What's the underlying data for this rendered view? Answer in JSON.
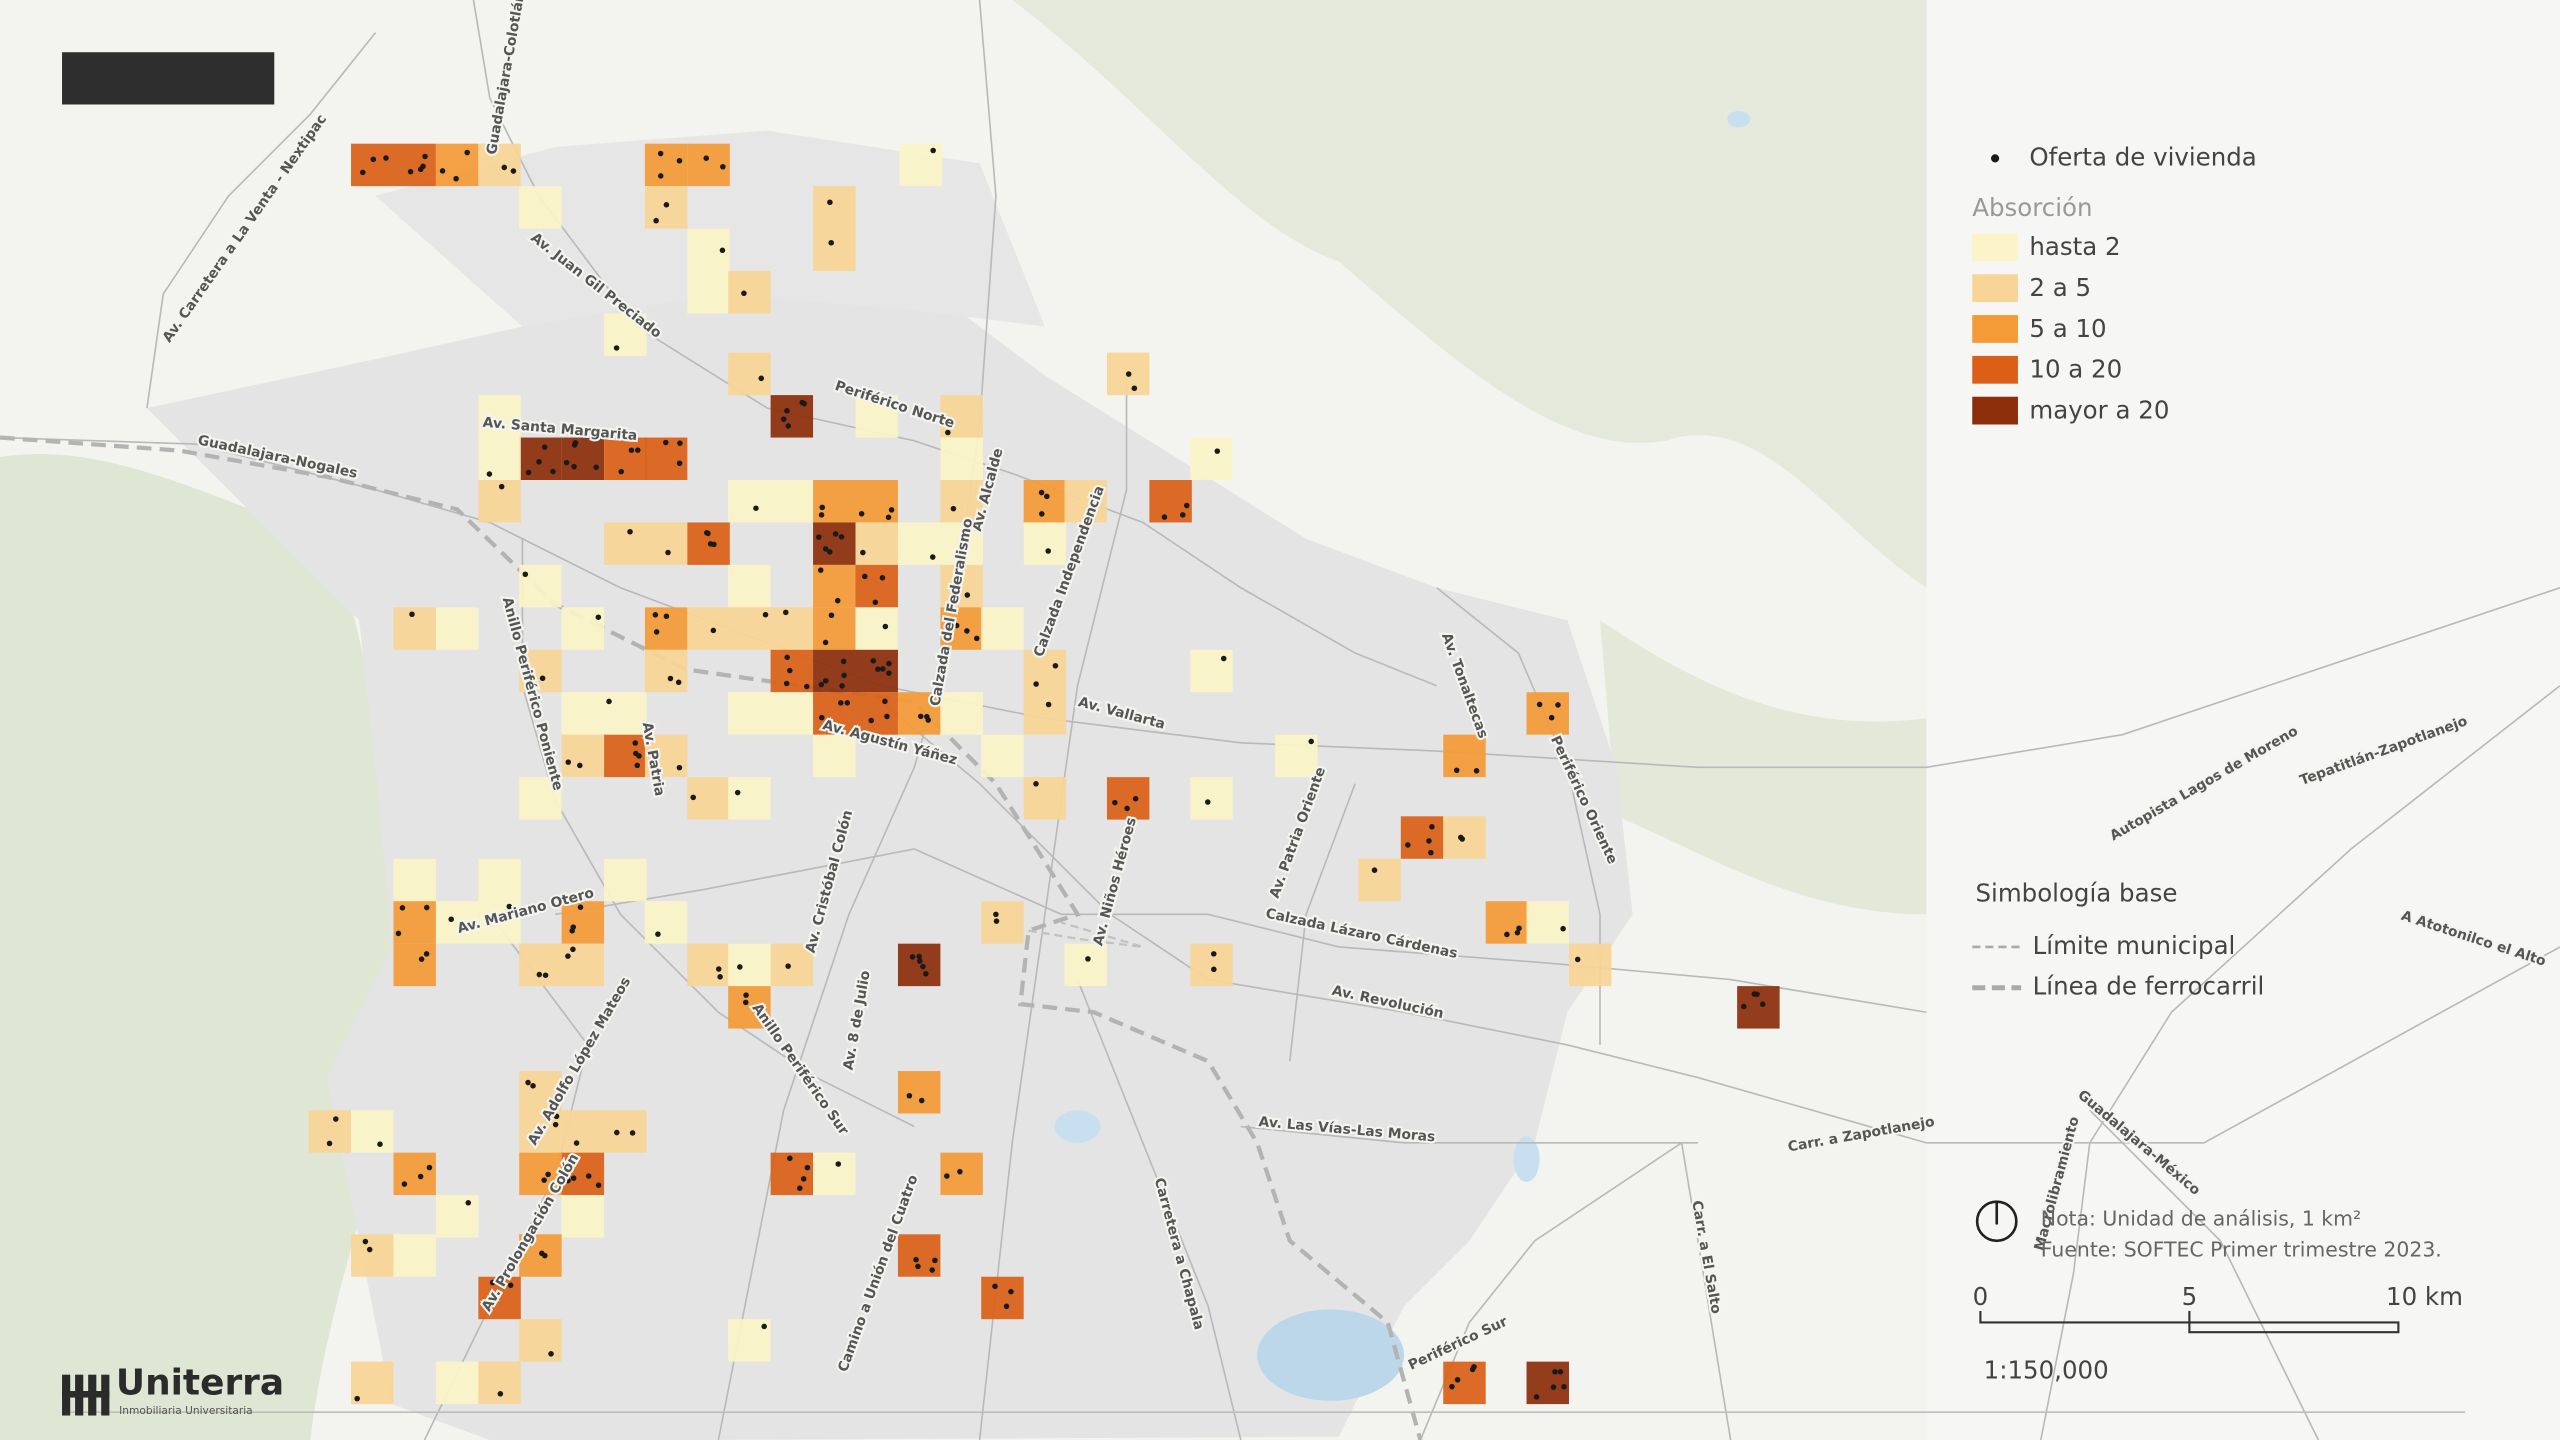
{
  "logo": {
    "name": "Uniterra",
    "tagline": "Inmobiliaria Universitaria"
  },
  "legend": {
    "points": "Oferta de vivienda",
    "title": "Absorción",
    "classes": [
      {
        "label": "hasta 2",
        "color": "#fbf4c8"
      },
      {
        "label": "2 a 5",
        "color": "#f8d596"
      },
      {
        "label": "5 a 10",
        "color": "#f49a36"
      },
      {
        "label": "10 a 20",
        "color": "#db5f17"
      },
      {
        "label": "mayor a 20",
        "color": "#8c2e0a"
      }
    ]
  },
  "base": {
    "title": "Simbología base",
    "items": [
      "Límite municipal",
      "Línea de ferrocarril"
    ]
  },
  "notes": [
    "Nota: Unidad de análisis, 1 km²",
    "Fuente: SOFTEC Primer trimestre 2023."
  ],
  "scale_bar": {
    "ticks": [
      "0",
      "5",
      "10 km"
    ],
    "ratio": "1:150,000"
  },
  "road_labels": [
    "Guadalajara-Colotlán",
    "Av. Carretera a La Venta - Nextipac",
    "Av. Juan Gil Preciado",
    "Periférico Norte",
    "Guadalajara-Nogales",
    "Av. Santa Margarita",
    "Av. Alcalde",
    "Calzada Independencia",
    "Calzada del Federalismo",
    "Anillo Periférico Poniente",
    "Av. Patria",
    "Av. Vallarta",
    "Av. Agustín Yáñez",
    "Av. Tonaltecas",
    "Periférico Oriente",
    "Av. Patria Oriente",
    "Av. Niños Héroes",
    "Av. Cristóbal Colón",
    "Av. Mariano Otero",
    "Calzada Lázaro Cárdenas",
    "Av. Revolución",
    "Av. Adolfo López Mateos",
    "Av. 8 de Julio",
    "Anillo Periférico Sur",
    "Av. Las Vías-Las Moras",
    "Carr. a Zapotlanejo",
    "Av. Prolongación Colón",
    "Camino a Unión del Cuatro",
    "Carretera a Chapala",
    "Carr. a El Salto",
    "Periférico Sur",
    "Macrolibramiento",
    "Guadalajara-México",
    "Autopista Lagos de Moreno",
    "Tepatitlán-Zapotlanejo",
    "A Atotonilco el Alto"
  ]
}
